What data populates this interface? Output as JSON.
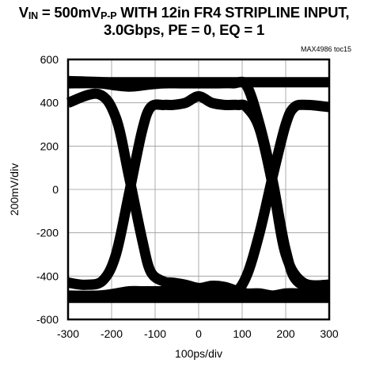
{
  "chart_data": {
    "type": "line",
    "title_parts": [
      "V",
      "IN",
      " = 500mV",
      "P-P",
      " WITH 12in FR4 STRIPLINE INPUT,"
    ],
    "title_line2": "3.0Gbps, PE = 0, EQ = 1",
    "source_note": "MAX4986 toc15",
    "xlabel": "100ps/div",
    "ylabel": "200mV/div",
    "xlim": [
      -300,
      300
    ],
    "ylim": [
      -600,
      600
    ],
    "x_ticks": [
      "-300",
      "-200",
      "-100",
      "0",
      "100",
      "200",
      "300"
    ],
    "y_ticks": [
      "600",
      "400",
      "200",
      "0",
      "-200",
      "-400",
      "-600"
    ],
    "grid": true,
    "legend": "none",
    "line_color": "#000000",
    "series": [
      {
        "x": [
          -300,
          -230,
          -190,
          -160,
          -130,
          -110,
          -80,
          -60,
          -30,
          0,
          30,
          60,
          90,
          110,
          140,
          170,
          200,
          230,
          300
        ],
        "y": [
          400,
          440,
          330,
          60,
          -230,
          -380,
          -425,
          -430,
          -440,
          -455,
          -445,
          -450,
          -470,
          -480,
          -480,
          -490,
          -480,
          -480,
          -480
        ]
      },
      {
        "x": [
          -300,
          -260,
          -220,
          -190,
          -160,
          -130,
          -110,
          -80,
          -60,
          -30,
          0,
          30,
          60,
          90,
          110,
          140,
          170,
          200,
          240,
          300
        ],
        "y": [
          -430,
          -440,
          -420,
          -300,
          -20,
          270,
          380,
          390,
          390,
          400,
          430,
          400,
          390,
          390,
          380,
          280,
          20,
          -300,
          -430,
          -440
        ]
      },
      {
        "x": [
          -300,
          -230,
          -190,
          -160,
          -130,
          -110,
          -80,
          -40,
          0,
          40,
          80,
          110,
          140,
          170,
          200,
          220,
          250,
          300
        ],
        "y": [
          -490,
          -490,
          -480,
          -470,
          -470,
          -470,
          -470,
          -470,
          -470,
          -470,
          -480,
          -400,
          -200,
          60,
          300,
          380,
          390,
          380
        ]
      },
      {
        "x": [
          -300,
          -230,
          -190,
          -160,
          -130,
          -110,
          -80,
          -40,
          0,
          40,
          80,
          110,
          140,
          170,
          200,
          230,
          300
        ],
        "y": [
          490,
          490,
          480,
          475,
          480,
          485,
          490,
          490,
          490,
          490,
          490,
          480,
          300,
          40,
          -280,
          -430,
          -440
        ]
      },
      {
        "x": [
          -300,
          -200,
          -100,
          0,
          100,
          200,
          300
        ],
        "y": [
          500,
          495,
          495,
          495,
          495,
          495,
          495
        ]
      },
      {
        "x": [
          -300,
          -200,
          -100,
          0,
          100,
          200,
          300
        ],
        "y": [
          -500,
          -500,
          -500,
          -500,
          -500,
          -500,
          -500
        ]
      }
    ]
  }
}
